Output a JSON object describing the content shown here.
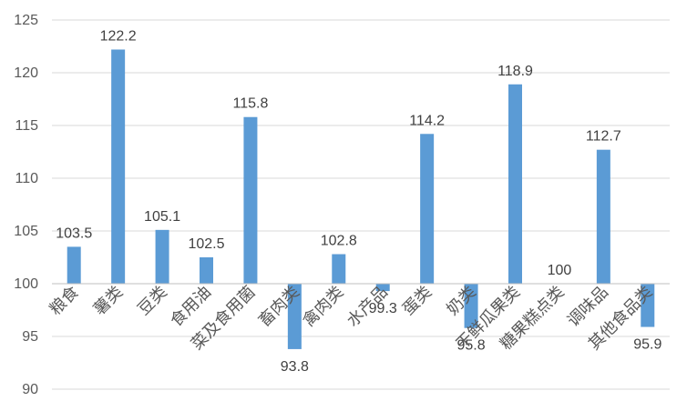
{
  "chart_data": {
    "type": "bar",
    "categories": [
      "粮食",
      "薯类",
      "豆类",
      "食用油",
      "菜及食用菌",
      "畜肉类",
      "禽肉类",
      "水产品",
      "蛋类",
      "奶类",
      "干鲜瓜果类",
      "糖果糕点类",
      "调味品",
      "其他食品类"
    ],
    "values": [
      103.5,
      122.2,
      105.1,
      102.5,
      115.8,
      93.8,
      102.8,
      99.3,
      114.2,
      95.8,
      118.9,
      100,
      112.7,
      95.9
    ],
    "value_labels": [
      "103.5",
      "122.2",
      "105.1",
      "102.5",
      "115.8",
      "93.8",
      "102.8",
      "99.3",
      "114.2",
      "95.8",
      "118.9",
      "100",
      "112.7",
      "95.9"
    ],
    "baseline": 100,
    "ylim": [
      90,
      125
    ],
    "yticks": [
      90,
      95,
      100,
      105,
      110,
      115,
      120,
      125
    ],
    "grid": true,
    "legend": "none",
    "title": "",
    "xlabel": "",
    "ylabel": "",
    "bar_color": "#5b9bd5"
  }
}
